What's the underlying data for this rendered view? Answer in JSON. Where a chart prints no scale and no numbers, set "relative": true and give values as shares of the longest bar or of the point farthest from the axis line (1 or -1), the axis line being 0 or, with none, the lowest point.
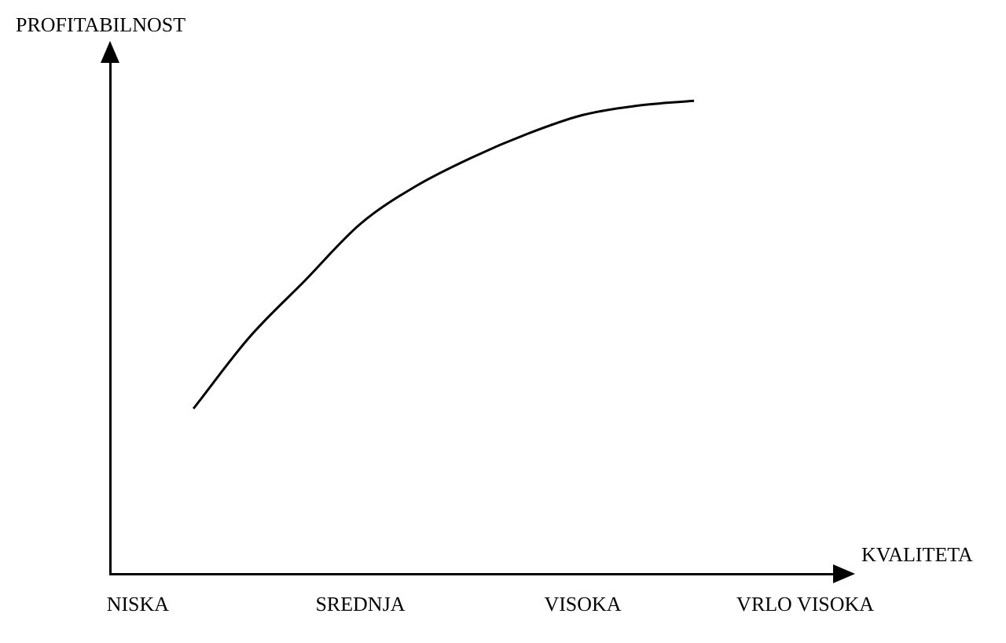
{
  "chart_data": {
    "type": "line",
    "relative": true,
    "xlabel": "KVALITETA",
    "ylabel": "PROFITABILNOST",
    "categories": [
      "NISKA",
      null,
      null,
      null,
      "SREDNJA",
      null,
      null,
      null,
      "VISOKA",
      null,
      null,
      null,
      "VRLO VISOKA"
    ],
    "series": [
      {
        "color": "#000000",
        "values": [
          null,
          0.35,
          0.5,
          0.62,
          0.74,
          0.82,
          0.88,
          0.93,
          0.97,
          0.99,
          1,
          null,
          null
        ]
      }
    ],
    "grid": false,
    "legend": false
  }
}
